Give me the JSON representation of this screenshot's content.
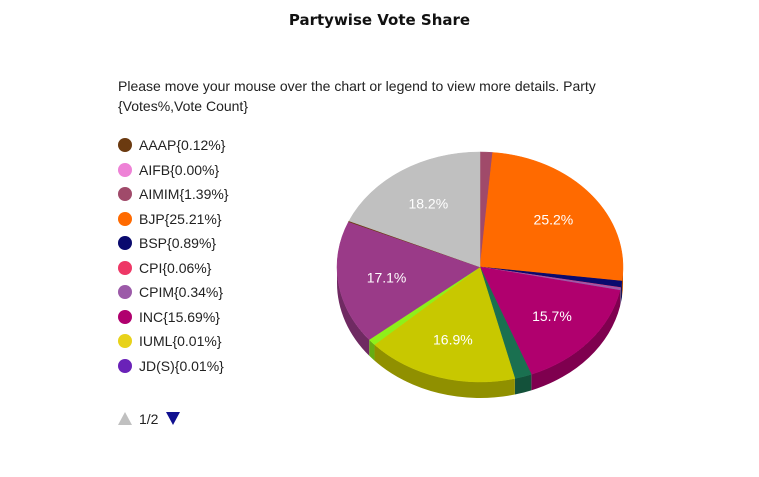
{
  "title": "Partywise Vote Share",
  "instructions": "Please move your mouse over the chart or legend to view more details. Party {Votes%,Vote Count}",
  "legend": {
    "items": [
      {
        "label": "AAAP{0.12%}",
        "color": "#6b3a10"
      },
      {
        "label": "AIFB{0.00%}",
        "color": "#ee82d6"
      },
      {
        "label": "AIMIM{1.39%}",
        "color": "#a04a6a"
      },
      {
        "label": "BJP{25.21%}",
        "color": "#ff6a00"
      },
      {
        "label": "BSP{0.89%}",
        "color": "#0a0a6e"
      },
      {
        "label": "CPI{0.06%}",
        "color": "#ee3866"
      },
      {
        "label": "CPIM{0.34%}",
        "color": "#9c5aa8"
      },
      {
        "label": "INC{15.69%}",
        "color": "#b0006e"
      },
      {
        "label": "IUML{0.01%}",
        "color": "#e8d21a"
      },
      {
        "label": "JD(S){0.01%}",
        "color": "#6a22b8"
      }
    ]
  },
  "pager": {
    "text": "1/2"
  },
  "chart_data": {
    "type": "pie",
    "title": "Partywise Vote Share",
    "slices": [
      {
        "name": "AIMIM",
        "value": 1.39,
        "color": "#a04a6a",
        "label": ""
      },
      {
        "name": "BJP",
        "value": 25.21,
        "color": "#ff6a00",
        "label": "25.2%"
      },
      {
        "name": "BSP",
        "value": 0.89,
        "color": "#0a0a6e",
        "label": ""
      },
      {
        "name": "CPI",
        "value": 0.06,
        "color": "#ee3866",
        "label": ""
      },
      {
        "name": "CPIM",
        "value": 0.34,
        "color": "#9c5aa8",
        "label": ""
      },
      {
        "name": "INC",
        "value": 15.69,
        "color": "#b0006e",
        "label": "15.7%"
      },
      {
        "name": "",
        "value": 1.9,
        "color": "#1a7050",
        "label": ""
      },
      {
        "name": "",
        "value": 16.9,
        "color": "#c8c800",
        "label": "16.9%"
      },
      {
        "name": "",
        "value": 0.9,
        "color": "#8ef01a",
        "label": ""
      },
      {
        "name": "",
        "value": 17.1,
        "color": "#9a3a88",
        "label": "17.1%"
      },
      {
        "name": "AAAP",
        "value": 0.12,
        "color": "#6b3a10",
        "label": ""
      },
      {
        "name": "",
        "value": 18.2,
        "color": "#c0c0c0",
        "label": "18.2%"
      }
    ],
    "legend_position": "left",
    "style": "3d"
  }
}
